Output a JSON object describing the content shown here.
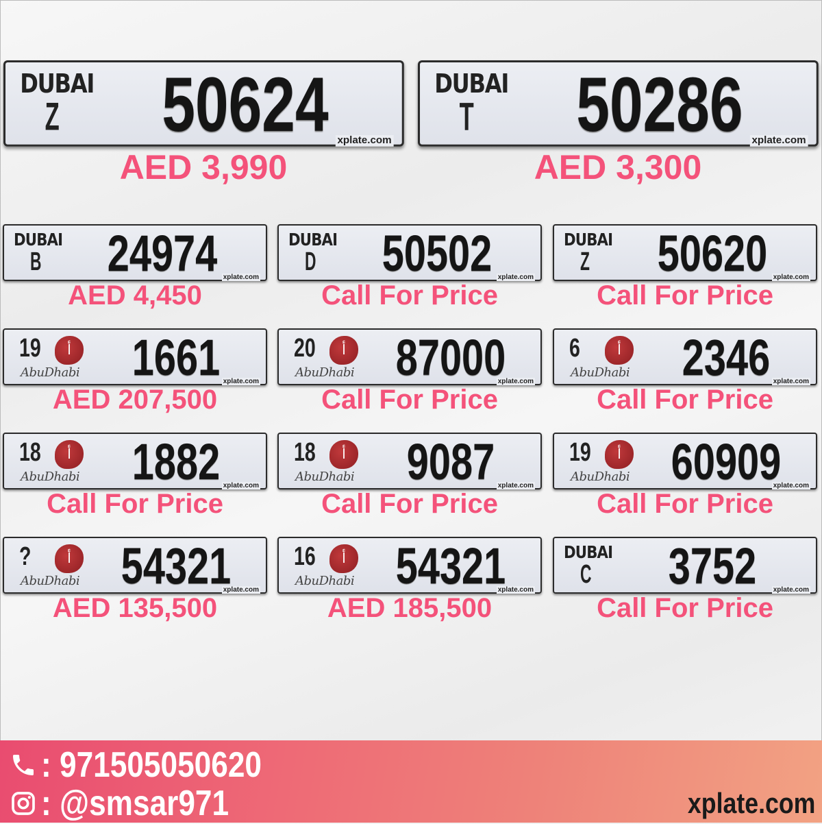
{
  "colors": {
    "price": "#f4527a",
    "footer_start": "#e94c70",
    "footer_end": "#f2a283"
  },
  "dubai_logo": "DUBAI",
  "abudhabi_logo": "AbuDhabi",
  "plate_site": "xplate.com",
  "featured": [
    {
      "emirate": "dubai",
      "code": "Z",
      "number": "50624",
      "price": "AED 3,990"
    },
    {
      "emirate": "dubai",
      "code": "T",
      "number": "50286",
      "price": "AED 3,300"
    }
  ],
  "plates": [
    {
      "emirate": "dubai",
      "code": "B",
      "number": "24974",
      "price": "AED 4,450"
    },
    {
      "emirate": "dubai",
      "code": "D",
      "number": "50502",
      "price": "Call For Price"
    },
    {
      "emirate": "dubai",
      "code": "Z",
      "number": "50620",
      "price": "Call For Price"
    },
    {
      "emirate": "abudhabi",
      "code": "19",
      "number": "1661",
      "price": "AED 207,500"
    },
    {
      "emirate": "abudhabi",
      "code": "20",
      "number": "87000",
      "price": "Call For Price"
    },
    {
      "emirate": "abudhabi",
      "code": "6",
      "number": "2346",
      "price": "Call For Price"
    },
    {
      "emirate": "abudhabi",
      "code": "18",
      "number": "1882",
      "price": "Call For Price"
    },
    {
      "emirate": "abudhabi",
      "code": "18",
      "number": "9087",
      "price": "Call For Price"
    },
    {
      "emirate": "abudhabi",
      "code": "19",
      "number": "60909",
      "price": "Call For Price"
    },
    {
      "emirate": "abudhabi",
      "code": "?",
      "number": "54321",
      "price": "AED 135,500"
    },
    {
      "emirate": "abudhabi",
      "code": "16",
      "number": "54321",
      "price": "AED 185,500"
    },
    {
      "emirate": "dubai",
      "code": "C",
      "number": "3752",
      "price": "Call For Price"
    }
  ],
  "footer": {
    "phone": ": 971505050620",
    "instagram": ": @smsar971",
    "site": "xplate.com",
    "phone_icon": "phone-icon",
    "instagram_icon": "instagram-icon"
  }
}
